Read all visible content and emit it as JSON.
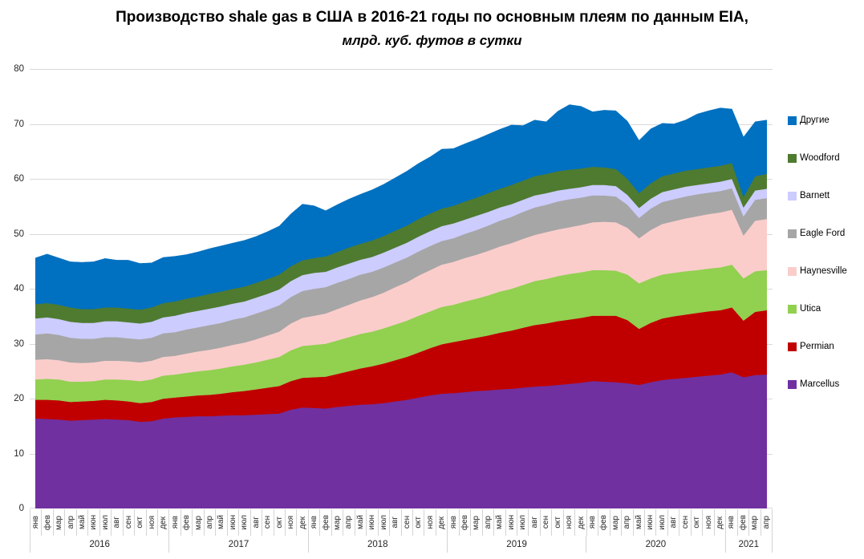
{
  "header": {
    "title": "Производство shale gas в США в 2016-21 годы по основным плеям по данным EIA,",
    "subtitle": "млрд. куб. футов в сутки"
  },
  "chart_data": {
    "type": "area",
    "stacked": true,
    "title": "Производство shale gas в США в 2016-21 годы по основным плеям по данным EIA,",
    "subtitle": "млрд. куб. футов в сутки",
    "ylabel": "",
    "xlabel": "",
    "ylim": [
      0,
      80
    ],
    "y_ticks": [
      0,
      10,
      20,
      30,
      40,
      50,
      60,
      70,
      80
    ],
    "grid": true,
    "legend_position": "right",
    "gridline_color": "#d9d9d9",
    "x_months": [
      "янв",
      "фев",
      "мар",
      "апр",
      "май",
      "июн",
      "июл",
      "авг",
      "сен",
      "окт",
      "ноя",
      "дек",
      "янв",
      "фев",
      "мар",
      "апр",
      "май",
      "июн",
      "июл",
      "авг",
      "сен",
      "окт",
      "ноя",
      "дек",
      "янв",
      "фев",
      "мар",
      "апр",
      "май",
      "июн",
      "июл",
      "авг",
      "сен",
      "окт",
      "ноя",
      "дек",
      "янв",
      "фев",
      "мар",
      "апр",
      "май",
      "июн",
      "июл",
      "авг",
      "сен",
      "окт",
      "ноя",
      "дек",
      "янв",
      "фев",
      "мар",
      "апр",
      "май",
      "июн",
      "июл",
      "авг",
      "сен",
      "окт",
      "ноя",
      "дек",
      "янв",
      "фев",
      "мар",
      "апр"
    ],
    "year_groups": [
      {
        "label": "2016",
        "months": 12
      },
      {
        "label": "2017",
        "months": 12
      },
      {
        "label": "2018",
        "months": 12
      },
      {
        "label": "2019",
        "months": 12
      },
      {
        "label": "2020",
        "months": 12
      },
      {
        "label": "2021",
        "months": 4
      }
    ],
    "series": [
      {
        "name": "Marcellus",
        "color": "#7030A0",
        "values": [
          16.4,
          16.3,
          16.2,
          16.0,
          16.1,
          16.2,
          16.3,
          16.2,
          16.1,
          15.8,
          15.9,
          16.4,
          16.6,
          16.7,
          16.8,
          16.8,
          16.9,
          17.0,
          17.0,
          17.1,
          17.2,
          17.3,
          18.0,
          18.4,
          18.3,
          18.2,
          18.5,
          18.7,
          18.9,
          19.0,
          19.2,
          19.5,
          19.8,
          20.2,
          20.6,
          20.9,
          21.0,
          21.2,
          21.4,
          21.5,
          21.7,
          21.8,
          22.0,
          22.2,
          22.3,
          22.5,
          22.7,
          22.9,
          23.2,
          23.1,
          23.0,
          22.8,
          22.5,
          23.0,
          23.4,
          23.6,
          23.8,
          24.0,
          24.2,
          24.4,
          24.8,
          23.9,
          24.3,
          24.4
        ]
      },
      {
        "name": "Permian",
        "color": "#C00000",
        "values": [
          3.4,
          3.5,
          3.5,
          3.4,
          3.4,
          3.4,
          3.5,
          3.5,
          3.4,
          3.4,
          3.5,
          3.6,
          3.6,
          3.7,
          3.8,
          3.9,
          4.0,
          4.2,
          4.4,
          4.6,
          4.8,
          5.0,
          5.2,
          5.4,
          5.6,
          5.8,
          6.0,
          6.3,
          6.6,
          6.9,
          7.2,
          7.5,
          7.8,
          8.2,
          8.6,
          9.0,
          9.3,
          9.5,
          9.7,
          10.0,
          10.3,
          10.6,
          10.9,
          11.2,
          11.4,
          11.6,
          11.7,
          11.8,
          11.9,
          12.0,
          12.1,
          11.5,
          10.2,
          10.8,
          11.2,
          11.4,
          11.5,
          11.6,
          11.7,
          11.7,
          11.8,
          10.3,
          11.5,
          11.7
        ]
      },
      {
        "name": "Utica",
        "color": "#92D050",
        "values": [
          3.7,
          3.8,
          3.8,
          3.7,
          3.6,
          3.6,
          3.7,
          3.8,
          3.9,
          4.0,
          4.1,
          4.2,
          4.2,
          4.3,
          4.4,
          4.5,
          4.6,
          4.7,
          4.8,
          4.9,
          5.1,
          5.3,
          5.6,
          5.8,
          5.9,
          6.0,
          6.1,
          6.2,
          6.3,
          6.3,
          6.4,
          6.5,
          6.6,
          6.7,
          6.7,
          6.8,
          6.8,
          7.0,
          7.1,
          7.3,
          7.5,
          7.6,
          7.8,
          8.0,
          8.1,
          8.2,
          8.3,
          8.3,
          8.3,
          8.3,
          8.2,
          8.3,
          8.3,
          8.1,
          8.0,
          7.9,
          7.9,
          7.8,
          7.8,
          7.8,
          7.8,
          7.7,
          7.4,
          7.3
        ]
      },
      {
        "name": "Haynesville",
        "color": "#FACDCB",
        "values": [
          3.6,
          3.6,
          3.5,
          3.5,
          3.4,
          3.4,
          3.4,
          3.4,
          3.4,
          3.4,
          3.4,
          3.4,
          3.4,
          3.5,
          3.6,
          3.7,
          3.8,
          3.9,
          4.0,
          4.2,
          4.4,
          4.6,
          4.9,
          5.1,
          5.3,
          5.5,
          5.7,
          5.9,
          6.1,
          6.3,
          6.5,
          6.8,
          7.0,
          7.3,
          7.5,
          7.7,
          7.8,
          7.9,
          8.0,
          8.1,
          8.2,
          8.3,
          8.4,
          8.4,
          8.5,
          8.5,
          8.5,
          8.6,
          8.7,
          8.8,
          8.8,
          8.5,
          8.2,
          8.8,
          9.2,
          9.4,
          9.6,
          9.8,
          9.9,
          10.0,
          10.0,
          7.8,
          9.2,
          9.3
        ]
      },
      {
        "name": "Eagle Ford",
        "color": "#A6A6A6",
        "values": [
          4.6,
          4.7,
          4.6,
          4.5,
          4.4,
          4.3,
          4.3,
          4.3,
          4.2,
          4.2,
          4.2,
          4.3,
          4.3,
          4.4,
          4.4,
          4.5,
          4.5,
          4.6,
          4.6,
          4.7,
          4.7,
          4.8,
          4.8,
          4.9,
          4.9,
          4.8,
          4.8,
          4.7,
          4.7,
          4.6,
          4.6,
          4.5,
          4.5,
          4.4,
          4.4,
          4.3,
          4.3,
          4.4,
          4.5,
          4.6,
          4.7,
          4.8,
          4.9,
          5.0,
          5.0,
          5.1,
          5.1,
          5.0,
          4.9,
          4.8,
          4.7,
          4.2,
          3.7,
          3.9,
          4.0,
          4.0,
          4.0,
          4.0,
          3.9,
          3.9,
          3.9,
          3.5,
          3.8,
          3.8
        ]
      },
      {
        "name": "Barnett",
        "color": "#CCCCFF",
        "values": [
          2.9,
          2.9,
          2.9,
          2.9,
          2.9,
          2.9,
          2.9,
          2.9,
          2.9,
          2.9,
          2.9,
          2.9,
          3.0,
          3.0,
          3.0,
          3.0,
          3.0,
          2.9,
          2.9,
          2.9,
          2.9,
          2.9,
          2.9,
          2.9,
          2.9,
          2.8,
          2.8,
          2.8,
          2.7,
          2.7,
          2.7,
          2.7,
          2.7,
          2.7,
          2.7,
          2.7,
          2.7,
          2.6,
          2.6,
          2.5,
          2.4,
          2.3,
          2.2,
          2.2,
          2.1,
          2.0,
          1.9,
          1.9,
          1.9,
          1.9,
          1.9,
          1.8,
          1.8,
          1.8,
          1.8,
          1.8,
          1.8,
          1.7,
          1.7,
          1.7,
          1.7,
          1.6,
          1.7,
          1.7
        ]
      },
      {
        "name": "Woodford",
        "color": "#4E7B2F",
        "values": [
          2.6,
          2.6,
          2.6,
          2.6,
          2.5,
          2.5,
          2.5,
          2.5,
          2.5,
          2.5,
          2.6,
          2.6,
          2.6,
          2.6,
          2.6,
          2.7,
          2.7,
          2.7,
          2.7,
          2.7,
          2.7,
          2.7,
          2.7,
          2.7,
          2.7,
          2.8,
          2.8,
          2.9,
          2.9,
          3.0,
          3.0,
          3.1,
          3.1,
          3.2,
          3.2,
          3.2,
          3.2,
          3.3,
          3.3,
          3.4,
          3.4,
          3.5,
          3.5,
          3.5,
          3.5,
          3.5,
          3.5,
          3.4,
          3.3,
          3.2,
          3.1,
          2.9,
          2.7,
          2.8,
          2.9,
          2.9,
          2.9,
          2.9,
          2.9,
          2.9,
          2.9,
          1.9,
          2.6,
          2.7
        ]
      },
      {
        "name": "Другие",
        "color": "#0070C0",
        "values": [
          8.4,
          8.9,
          8.5,
          8.3,
          8.5,
          8.6,
          8.9,
          8.6,
          8.8,
          8.4,
          8.1,
          8.3,
          8.2,
          8.0,
          8.1,
          8.2,
          8.3,
          8.3,
          8.4,
          8.4,
          8.6,
          8.8,
          9.5,
          10.2,
          9.5,
          8.3,
          8.6,
          8.8,
          9.0,
          9.2,
          9.4,
          9.6,
          9.9,
          10.1,
          10.3,
          10.8,
          10.4,
          10.5,
          10.6,
          10.7,
          10.8,
          10.9,
          10.0,
          10.2,
          9.5,
          10.9,
          11.8,
          11.3,
          10.0,
          10.4,
          10.6,
          10.5,
          9.6,
          9.9,
          9.6,
          9.0,
          9.2,
          10.0,
          10.3,
          10.5,
          9.8,
          10.9,
          9.9,
          9.8
        ]
      }
    ]
  }
}
